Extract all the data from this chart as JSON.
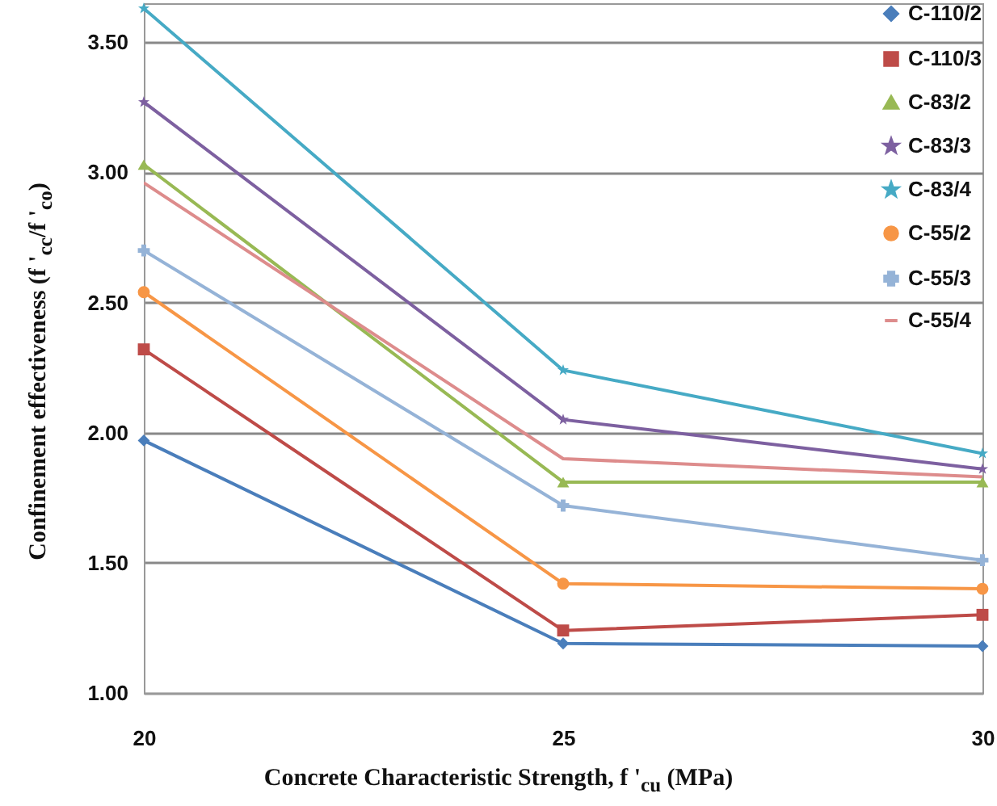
{
  "chart_data": {
    "type": "line",
    "xlabel": "Concrete Characteristic Strength, f '$_{cu}$ (MPa)",
    "ylabel": "Confinement effectiveness (f '$_{cc}$/f '$_{co}$)",
    "x": [
      20,
      25,
      30
    ],
    "xlim": [
      20,
      30
    ],
    "xticks": [
      20,
      25,
      30
    ],
    "ylim": [
      1,
      3.65
    ],
    "yticks": [
      {
        "value": 1,
        "label": "1.00"
      },
      {
        "value": 1.5,
        "label": "1.50"
      },
      {
        "value": 2,
        "label": "2.00"
      },
      {
        "value": 2.5,
        "label": "2.50"
      },
      {
        "value": 3,
        "label": "3.00"
      },
      {
        "value": 3.5,
        "label": "3.50"
      }
    ],
    "grid": "y",
    "legend": "top right",
    "line_style": "solid",
    "series": [
      {
        "name": "C-110/2",
        "color": "#4a7ebb",
        "marker": "diamond",
        "values": [
          1.97,
          1.19,
          1.18
        ]
      },
      {
        "name": "C-110/3",
        "color": "#be4b48",
        "marker": "square",
        "values": [
          2.32,
          1.24,
          1.3
        ]
      },
      {
        "name": "C-83/2",
        "color": "#98b954",
        "marker": "triangle",
        "values": [
          3.03,
          1.81,
          1.81
        ]
      },
      {
        "name": "C-83/3",
        "color": "#7d60a0",
        "marker": "star",
        "values": [
          3.27,
          2.05,
          1.86
        ]
      },
      {
        "name": "C-83/4",
        "color": "#46aac5",
        "marker": "star",
        "values": [
          3.63,
          2.24,
          1.92
        ]
      },
      {
        "name": "C-55/2",
        "color": "#f79646",
        "marker": "circle",
        "values": [
          2.54,
          1.42,
          1.4
        ]
      },
      {
        "name": "C-55/3",
        "color": "#95b3d7",
        "marker": "cross",
        "values": [
          2.7,
          1.72,
          1.51
        ]
      },
      {
        "name": "C-55/4",
        "color": "#dd8c8c",
        "marker": "none",
        "values": [
          2.96,
          1.9,
          1.83
        ]
      }
    ]
  }
}
